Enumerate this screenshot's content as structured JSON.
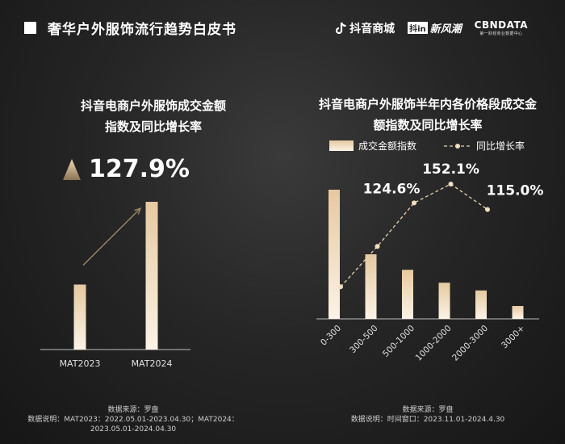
{
  "page": {
    "title": "奢华户外服饰流行趋势白皮书"
  },
  "logos": {
    "douyin": "抖音商城",
    "xinfengchao_box": "抖in",
    "xinfengchao": "新风潮",
    "cbn": "CBNDATA",
    "cbn_sub": "第一财经商业数据中心"
  },
  "colors": {
    "bar_top": "#e6c9a0",
    "bar_bottom": "#fbf3e6",
    "line": "#e8d3b3",
    "background": "#262626"
  },
  "left": {
    "title_line1": "抖音电商户外服饰成交金额",
    "title_line2": "指数及同比增长率",
    "headline": "127.9%",
    "footer_line1": "数据来源：罗盘",
    "footer_line2": "数据说明：MAT2023：2022.05.01-2023.04.30；MAT2024：",
    "footer_line3": "2023.05.01-2024.04.30"
  },
  "right": {
    "title_line1": "抖音电商户外服饰半年内各价格段成交金",
    "title_line2": "额指数及同比增长率",
    "legend_bar": "成交金额指数",
    "legend_line": "同比增长率",
    "footer_line1": "数据来源：罗盘",
    "footer_line2": "数据说明：时间窗口：2023.11.01-2024.4.30"
  },
  "chart_data": [
    {
      "type": "bar",
      "categories": [
        "MAT2023",
        "MAT2024"
      ],
      "values": [
        44,
        100
      ],
      "growth_label": "127.9%",
      "ylim": [
        0,
        100
      ],
      "grid": false
    },
    {
      "type": "bar",
      "categories": [
        "0-300",
        "300-500",
        "500-1000",
        "1000-2000",
        "2000-3000",
        "3000+"
      ],
      "series": [
        {
          "name": "成交金额指数",
          "type": "bar",
          "values": [
            100,
            50,
            38,
            28,
            22,
            10
          ]
        },
        {
          "name": "同比增长率",
          "type": "line",
          "values": [
            2,
            61,
            124.6,
            152.1,
            115.0,
            null
          ],
          "labels": [
            "",
            "",
            "124.6%",
            "152.1%",
            "115.0%",
            ""
          ]
        }
      ],
      "legend": "top",
      "grid": false
    }
  ]
}
